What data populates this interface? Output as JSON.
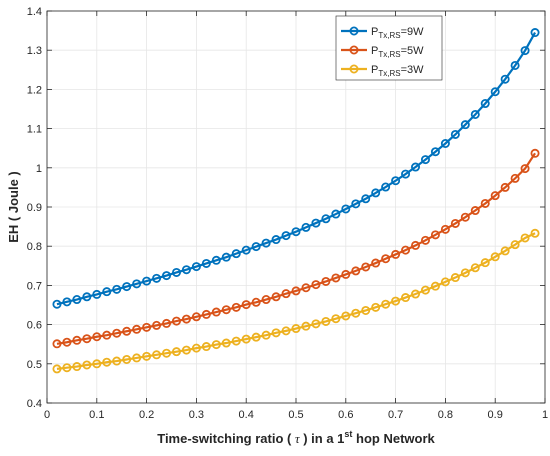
{
  "chart_data": {
    "type": "line",
    "xlabel": {
      "prefix": "Time-switching ratio ( ",
      "symbol": "τ",
      "middle": " ) in a 1",
      "sup": "st",
      "suffix": " hop Network"
    },
    "ylabel": "EH ( Joule )",
    "xlim": [
      0,
      1
    ],
    "ylim": [
      0.4,
      1.4
    ],
    "xticks": [
      "0",
      "0.1",
      "0.2",
      "0.3",
      "0.4",
      "0.5",
      "0.6",
      "0.7",
      "0.8",
      "0.9",
      "1"
    ],
    "yticks": [
      "0.4",
      "0.5",
      "0.6",
      "0.7",
      "0.8",
      "0.9",
      "1",
      "1.1",
      "1.2",
      "1.3",
      "1.4"
    ],
    "grid": true,
    "legend_position": "top-right",
    "x": [
      0.02,
      0.04,
      0.06,
      0.08,
      0.1,
      0.12,
      0.14,
      0.16,
      0.18,
      0.2,
      0.22,
      0.24,
      0.26,
      0.28,
      0.3,
      0.32,
      0.34,
      0.36,
      0.38,
      0.4,
      0.42,
      0.44,
      0.46,
      0.48,
      0.5,
      0.52,
      0.54,
      0.56,
      0.58,
      0.6,
      0.62,
      0.64,
      0.66,
      0.68,
      0.7,
      0.72,
      0.74,
      0.76,
      0.78,
      0.8,
      0.82,
      0.84,
      0.86,
      0.88,
      0.9,
      0.92,
      0.94,
      0.96,
      0.98
    ],
    "series": [
      {
        "label_main": "P",
        "label_sub": "Tx,RS",
        "label_tail": "=9W",
        "color": "#0072BD",
        "values": [
          0.652,
          0.658,
          0.664,
          0.671,
          0.677,
          0.684,
          0.69,
          0.697,
          0.704,
          0.711,
          0.718,
          0.725,
          0.733,
          0.74,
          0.748,
          0.756,
          0.764,
          0.772,
          0.781,
          0.79,
          0.799,
          0.808,
          0.817,
          0.827,
          0.837,
          0.848,
          0.859,
          0.87,
          0.882,
          0.895,
          0.908,
          0.921,
          0.936,
          0.951,
          0.967,
          0.984,
          1.002,
          1.021,
          1.041,
          1.062,
          1.085,
          1.11,
          1.136,
          1.164,
          1.194,
          1.226,
          1.261,
          1.299,
          1.345
        ]
      },
      {
        "label_main": "P",
        "label_sub": "Tx,RS",
        "label_tail": "=5W",
        "color": "#D95319",
        "values": [
          0.551,
          0.555,
          0.56,
          0.564,
          0.569,
          0.573,
          0.578,
          0.583,
          0.588,
          0.593,
          0.598,
          0.603,
          0.609,
          0.614,
          0.62,
          0.626,
          0.632,
          0.638,
          0.644,
          0.651,
          0.657,
          0.664,
          0.671,
          0.679,
          0.686,
          0.694,
          0.702,
          0.71,
          0.719,
          0.728,
          0.737,
          0.747,
          0.757,
          0.768,
          0.779,
          0.79,
          0.802,
          0.815,
          0.829,
          0.843,
          0.858,
          0.874,
          0.891,
          0.909,
          0.929,
          0.95,
          0.973,
          0.998,
          1.037
        ]
      },
      {
        "label_main": "P",
        "label_sub": "Tx,RS",
        "label_tail": "=3W",
        "color": "#EDB120",
        "values": [
          0.487,
          0.49,
          0.493,
          0.497,
          0.5,
          0.504,
          0.507,
          0.511,
          0.515,
          0.519,
          0.523,
          0.527,
          0.531,
          0.535,
          0.54,
          0.544,
          0.549,
          0.553,
          0.558,
          0.563,
          0.568,
          0.573,
          0.579,
          0.584,
          0.59,
          0.596,
          0.602,
          0.608,
          0.615,
          0.622,
          0.629,
          0.636,
          0.644,
          0.652,
          0.66,
          0.669,
          0.678,
          0.688,
          0.698,
          0.709,
          0.72,
          0.732,
          0.745,
          0.758,
          0.773,
          0.788,
          0.804,
          0.821,
          0.833
        ]
      }
    ]
  }
}
